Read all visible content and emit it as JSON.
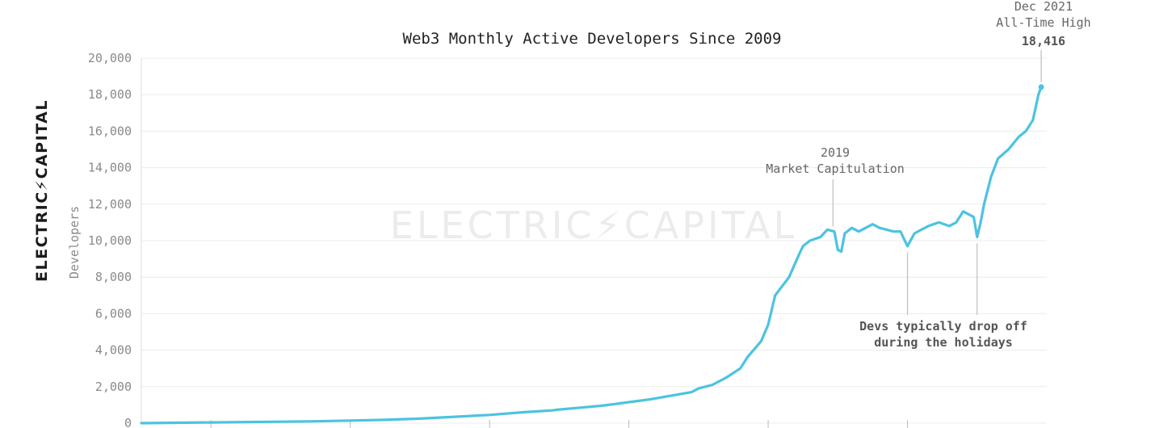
{
  "brand": "ELECTRIC⚡CAPITAL",
  "watermark": "ELECTRIC⚡CAPITAL",
  "chart_data": {
    "type": "line",
    "title": "Web3 Monthly Active Developers Since 2009",
    "xlabel": "",
    "ylabel": "Developers",
    "ylim": [
      0,
      20000
    ],
    "yticks": [
      0,
      2000,
      4000,
      6000,
      8000,
      10000,
      12000,
      14000,
      16000,
      18000,
      20000
    ],
    "ytick_labels": [
      "0",
      "2,000",
      "4,000",
      "6,000",
      "8,000",
      "10,000",
      "12,000",
      "14,000",
      "16,000",
      "18,000",
      "20,000"
    ],
    "xlim": [
      2009.0,
      2022.0
    ],
    "grid": true,
    "line_color": "#4cc3e0",
    "series": [
      {
        "x": [
          2009.0,
          2009.5,
          2010.0,
          2010.5,
          2011.0,
          2011.5,
          2012.0,
          2012.5,
          2013.0,
          2013.5,
          2014.0,
          2014.5,
          2014.9,
          2015.0,
          2015.3,
          2015.6,
          2015.8,
          2016.0,
          2016.3,
          2016.6,
          2016.9,
          2017.0,
          2017.2,
          2017.4,
          2017.6,
          2017.7,
          2017.9,
          2018.0,
          2018.1,
          2018.3,
          2018.45,
          2018.5,
          2018.6,
          2018.75,
          2018.85,
          2018.95,
          2019.0,
          2019.05,
          2019.1,
          2019.2,
          2019.3,
          2019.5,
          2019.6,
          2019.7,
          2019.8,
          2019.9,
          2020.0,
          2020.1,
          2020.2,
          2020.3,
          2020.45,
          2020.6,
          2020.7,
          2020.8,
          2020.9,
          2020.95,
          2021.0,
          2021.05,
          2021.1,
          2021.2,
          2021.3,
          2021.45,
          2021.6,
          2021.7,
          2021.8,
          2021.88,
          2021.92
        ],
        "y": [
          0,
          20,
          40,
          60,
          80,
          100,
          140,
          180,
          250,
          350,
          450,
          600,
          700,
          750,
          850,
          950,
          1050,
          1150,
          1300,
          1500,
          1700,
          1900,
          2100,
          2500,
          3000,
          3600,
          4500,
          5400,
          7000,
          8000,
          9300,
          9700,
          10000,
          10200,
          10600,
          10500,
          9500,
          9400,
          10400,
          10700,
          10500,
          10900,
          10700,
          10600,
          10500,
          10500,
          9700,
          10400,
          10600,
          10800,
          11000,
          10800,
          11000,
          11600,
          11400,
          11300,
          10200,
          11000,
          12000,
          13500,
          14500,
          15000,
          15700,
          16000,
          16600,
          18000,
          18416
        ]
      }
    ],
    "annotations": [
      {
        "lines": [
          "2019",
          "Market Capitulation"
        ],
        "x": 2018.93,
        "y": 10600
      },
      {
        "lines": [
          "Devs typically drop off",
          "during the holidays"
        ],
        "points": [
          [
            2020.0,
            9700
          ],
          [
            2021.0,
            10200
          ]
        ]
      },
      {
        "lines": [
          "Dec 2021",
          "All-Time High"
        ],
        "value": "18,416",
        "x": 2021.92,
        "y": 18416
      }
    ]
  }
}
